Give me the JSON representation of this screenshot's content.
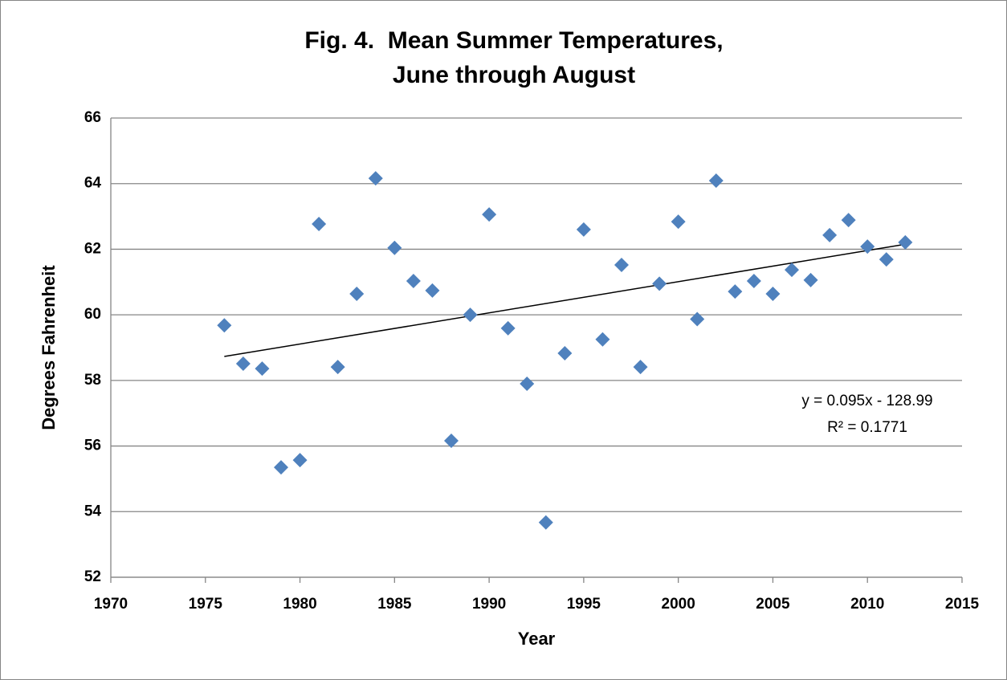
{
  "chart_data": {
    "type": "scatter",
    "title": [
      "Fig. 4.  Mean Summer Temperatures,",
      "June through August"
    ],
    "xlabel": "Year",
    "ylabel": "Degrees Fahrenheit",
    "x": [
      1976,
      1977,
      1978,
      1979,
      1980,
      1981,
      1982,
      1983,
      1984,
      1985,
      1986,
      1987,
      1988,
      1989,
      1990,
      1991,
      1992,
      1993,
      1994,
      1995,
      1996,
      1997,
      1998,
      1999,
      2000,
      2001,
      2002,
      2003,
      2004,
      2005,
      2006,
      2007,
      2008,
      2009,
      2010,
      2011,
      2012
    ],
    "series": [
      {
        "name": "Mean summer temperature",
        "color": "#4f81bd",
        "values": [
          59.68,
          58.51,
          58.36,
          55.35,
          55.57,
          62.77,
          58.41,
          60.64,
          64.16,
          62.04,
          61.03,
          60.74,
          56.16,
          60.0,
          63.06,
          59.59,
          57.9,
          53.67,
          58.83,
          62.6,
          59.25,
          61.52,
          58.41,
          60.95,
          62.84,
          59.87,
          64.09,
          60.71,
          61.03,
          60.64,
          61.37,
          61.06,
          62.43,
          62.89,
          62.08,
          61.69,
          62.21
        ]
      }
    ],
    "trendline": {
      "slope": 0.095,
      "intercept": -128.99,
      "color": "#000000"
    },
    "annotations": [
      "y = 0.095x - 128.99",
      "R² = 0.1771"
    ],
    "xlim": [
      1970,
      2015
    ],
    "xticks": [
      1970,
      1975,
      1980,
      1985,
      1990,
      1995,
      2000,
      2005,
      2010,
      2015
    ],
    "ylim": [
      52,
      66
    ],
    "yticks": [
      52,
      54,
      56,
      58,
      60,
      62,
      64,
      66
    ],
    "grid": true
  }
}
